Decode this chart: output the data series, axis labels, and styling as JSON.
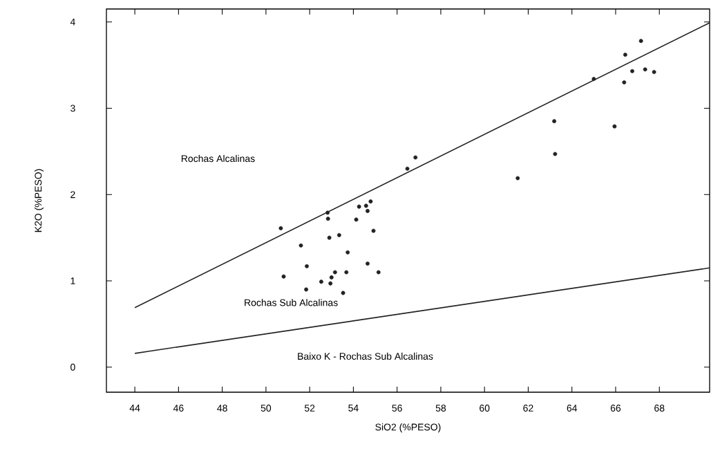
{
  "chart_data": {
    "type": "scatter",
    "xlabel": "SiO2 (%PESO)",
    "ylabel": "K2O (%PESO)",
    "xlim": [
      42.7,
      70.3
    ],
    "ylim": [
      -0.29,
      4.15
    ],
    "xticks": [
      44,
      46,
      48,
      50,
      52,
      54,
      56,
      58,
      60,
      62,
      64,
      66,
      68
    ],
    "yticks": [
      0,
      1,
      2,
      3,
      4
    ],
    "grid": false,
    "annotations": [
      "Rochas Alcalinas",
      "Rochas Sub Alcalinas",
      "Baixo K - Rochas Sub Alcalinas"
    ],
    "series": [
      {
        "marker": "circle",
        "color": "#222222",
        "x": [
          50.68,
          52.82,
          52.84,
          54.26,
          54.58,
          54.79,
          54.65,
          54.13,
          54.92,
          52.9,
          53.35,
          51.6,
          53.74,
          51.87,
          54.65,
          50.81,
          53.16,
          53.68,
          55.15,
          53.0,
          52.53,
          52.95,
          51.84,
          53.53,
          56.84,
          56.47,
          61.52,
          63.23,
          67.16,
          66.44,
          66.76,
          67.35,
          67.76,
          66.39,
          65.0,
          63.19,
          65.95
        ],
        "values": [
          1.61,
          1.79,
          1.72,
          1.86,
          1.87,
          1.92,
          1.81,
          1.71,
          1.58,
          1.5,
          1.53,
          1.41,
          1.33,
          1.17,
          1.2,
          1.05,
          1.1,
          1.1,
          1.1,
          1.04,
          0.99,
          0.97,
          0.9,
          0.86,
          2.43,
          2.3,
          2.19,
          2.47,
          3.78,
          3.62,
          3.43,
          3.45,
          3.42,
          3.3,
          3.34,
          2.85,
          2.79
        ]
      },
      {
        "type": "line",
        "marker": "none",
        "line_style": "solid",
        "color": "#222222",
        "x": [
          44,
          70.3
        ],
        "values": [
          0.69,
          3.99
        ]
      },
      {
        "type": "line",
        "marker": "none",
        "line_style": "solid",
        "color": "#222222",
        "x": [
          44,
          70.3
        ],
        "values": [
          0.16,
          1.15
        ]
      }
    ]
  }
}
